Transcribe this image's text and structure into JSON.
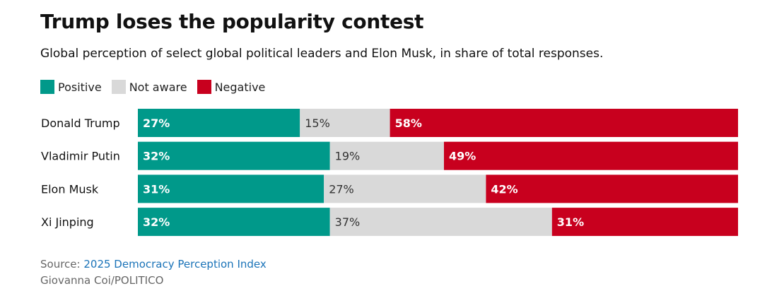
{
  "title": "Trump loses the popularity contest",
  "subtitle": "Global perception of select global political leaders and Elon Musk, in share of total responses.",
  "source_prefix": "Source:",
  "source_link": "2025 Democracy Perception Index",
  "credit": "Giovanna Coi/POLITICO",
  "colors": {
    "positive": "#00998a",
    "not_aware": "#d9d9d9",
    "negative": "#c8001e",
    "label_light": "#ffffff",
    "label_dark": "#333333"
  },
  "chart_data": {
    "type": "bar",
    "stacked": true,
    "orientation": "horizontal",
    "categories": [
      "Donald Trump",
      "Vladimir Putin",
      "Elon Musk",
      "Xi Jinping"
    ],
    "series": [
      {
        "name": "Positive",
        "values": [
          27,
          32,
          31,
          32
        ],
        "labels": [
          "27%",
          "32%",
          "31%",
          "32%"
        ]
      },
      {
        "name": "Not aware",
        "values": [
          15,
          19,
          27,
          37
        ],
        "labels": [
          "15%",
          "19%",
          "27%",
          "37%"
        ]
      },
      {
        "name": "Negative",
        "values": [
          58,
          49,
          42,
          31
        ],
        "labels": [
          "58%",
          "49%",
          "42%",
          "31%"
        ]
      }
    ],
    "xlim": [
      0,
      100
    ],
    "legend": "top-left",
    "grid": false
  }
}
